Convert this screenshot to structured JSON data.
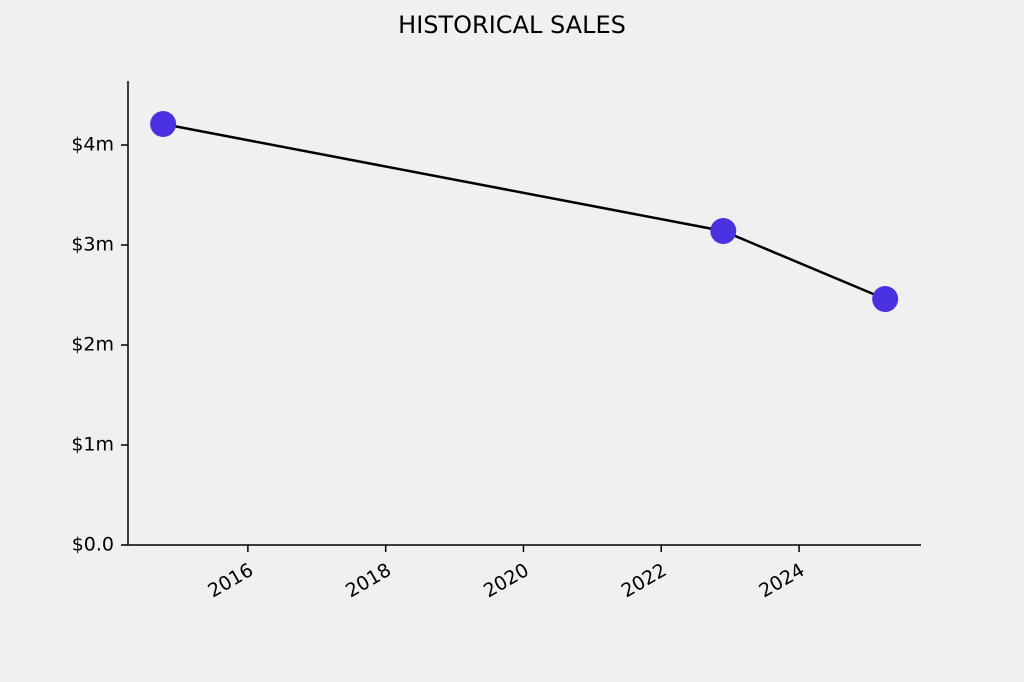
{
  "chart_data": {
    "type": "line",
    "title": "HISTORICAL SALES",
    "x": [
      2014.77,
      2022.9,
      2025.25
    ],
    "values": [
      4210000,
      3140000,
      2460000
    ],
    "color": "#4b32e0",
    "line_color": "#000000",
    "xlim": [
      2014.26,
      2025.77
    ],
    "xticks": [
      2016,
      2018,
      2020,
      2022,
      2024
    ],
    "ylim": [
      0,
      4640000
    ],
    "yticks": [
      {
        "value": 0,
        "label": "$0.0"
      },
      {
        "value": 1000000,
        "label": "$1m"
      },
      {
        "value": 2000000,
        "label": "$2m"
      },
      {
        "value": 3000000,
        "label": "$3m"
      },
      {
        "value": 4000000,
        "label": "$4m"
      }
    ],
    "grid": false
  }
}
